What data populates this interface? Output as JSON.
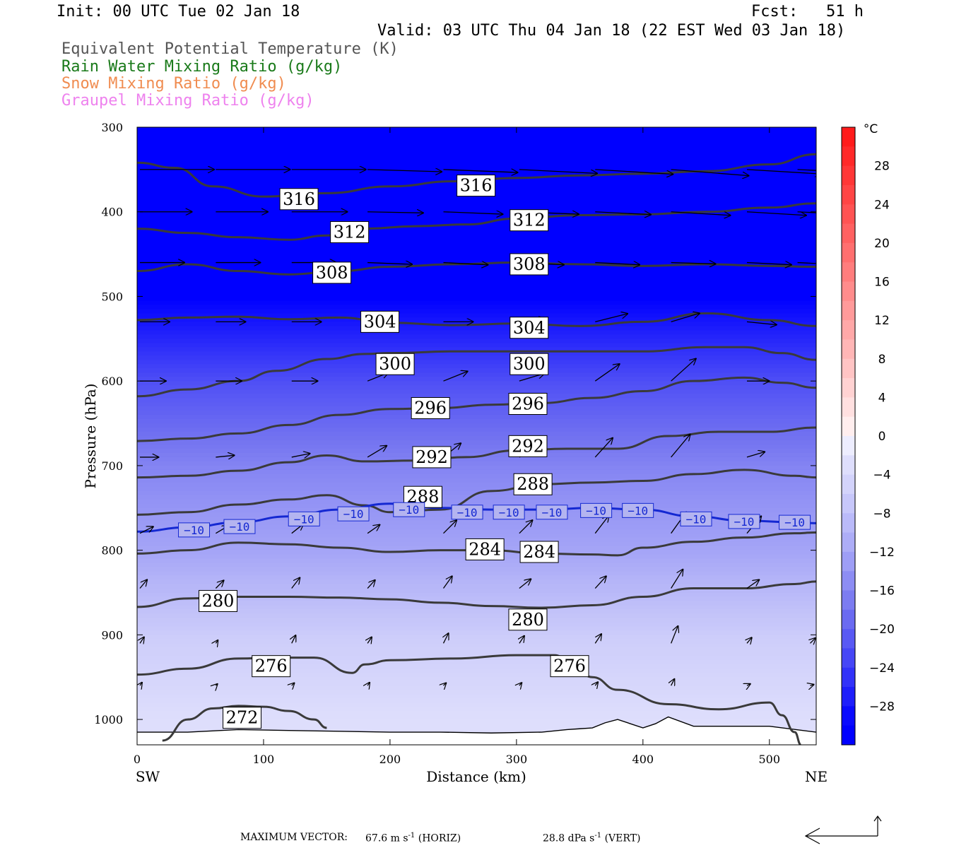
{
  "header": {
    "init": "Init: 00 UTC Tue 02 Jan 18",
    "fcst": "Fcst:   51 h",
    "valid": "Valid: 03 UTC Thu 04 Jan 18 (22 EST Wed 03 Jan 18)",
    "legend": [
      {
        "label": "Equivalent Potential Temperature (K)",
        "color": "#555555"
      },
      {
        "label": "Rain Water Mixing Ratio (g/kg)",
        "color": "#1a7a1a"
      },
      {
        "label": "Snow Mixing Ratio (g/kg)",
        "color": "#f08c50"
      },
      {
        "label": "Graupel Mixing Ratio (g/kg)",
        "color": "#ee82ee"
      }
    ]
  },
  "footer": {
    "max_vector_label": "MAXIMUM VECTOR:",
    "horiz": "67.6 m s",
    "horiz_exp": "-1",
    "horiz_unit": "(HORIZ)",
    "vert": "28.8 dPa s",
    "vert_exp": "-1",
    "vert_unit": "(VERT)"
  },
  "chart_data": {
    "type": "cross-section",
    "xlabel": "Distance (km)",
    "ylabel": "Pressure (hPa)",
    "xlim": [
      0,
      537
    ],
    "ylim": [
      1030,
      300
    ],
    "x_ticks": [
      0,
      100,
      200,
      300,
      400,
      500
    ],
    "y_ticks": [
      300,
      400,
      500,
      600,
      700,
      800,
      900,
      1000
    ],
    "endpoint_left": "SW",
    "endpoint_right": "NE",
    "colorbar": {
      "unit": "°C",
      "ticks": [
        28,
        24,
        20,
        16,
        12,
        8,
        4,
        0,
        -4,
        -8,
        -12,
        -16,
        -20,
        -24,
        -28
      ]
    },
    "theta_e_contours": [
      {
        "value": 316,
        "x": [
          0,
          30,
          60,
          100,
          150,
          200,
          250,
          300,
          350,
          400,
          450,
          500,
          537
        ],
        "p": [
          342,
          348,
          370,
          382,
          378,
          370,
          364,
          360,
          357,
          355,
          352,
          344,
          332
        ]
      },
      {
        "value": 312,
        "x": [
          0,
          40,
          80,
          120,
          150,
          180,
          220,
          260,
          300,
          350,
          400,
          450,
          500,
          537
        ],
        "p": [
          420,
          425,
          430,
          433,
          428,
          420,
          417,
          415,
          408,
          404,
          403,
          400,
          395,
          390
        ]
      },
      {
        "value": 308,
        "x": [
          0,
          40,
          80,
          120,
          160,
          200,
          250,
          300,
          350,
          400,
          450,
          500,
          537
        ],
        "p": [
          470,
          462,
          470,
          474,
          470,
          465,
          462,
          460,
          462,
          464,
          462,
          464,
          465
        ]
      },
      {
        "value": 304,
        "x": [
          0,
          40,
          80,
          120,
          160,
          200,
          250,
          300,
          350,
          400,
          450,
          500,
          537
        ],
        "p": [
          528,
          525,
          524,
          527,
          525,
          531,
          534,
          532,
          535,
          530,
          520,
          528,
          535
        ]
      },
      {
        "value": 300,
        "x": [
          0,
          40,
          80,
          110,
          150,
          180,
          200,
          250,
          300,
          350,
          400,
          450,
          480,
          510,
          537
        ],
        "p": [
          618,
          610,
          600,
          588,
          574,
          568,
          567,
          565,
          565,
          565,
          565,
          560,
          560,
          567,
          575
        ]
      },
      {
        "value": 296,
        "x": [
          0,
          40,
          80,
          120,
          160,
          200,
          240,
          280,
          320,
          360,
          400,
          440,
          480,
          510,
          537
        ],
        "p": [
          671,
          668,
          662,
          652,
          640,
          633,
          632,
          628,
          626,
          620,
          612,
          600,
          596,
          602,
          608
        ]
      },
      {
        "value": 292,
        "x": [
          0,
          40,
          80,
          120,
          150,
          180,
          220,
          260,
          300,
          340,
          380,
          420,
          460,
          500,
          537
        ],
        "p": [
          714,
          712,
          706,
          696,
          688,
          695,
          694,
          690,
          682,
          680,
          680,
          665,
          660,
          660,
          655
        ]
      },
      {
        "value": 288,
        "x": [
          0,
          40,
          80,
          120,
          150,
          180,
          200,
          240,
          280,
          320,
          360,
          400,
          440,
          480,
          520,
          537
        ],
        "p": [
          758,
          755,
          746,
          740,
          735,
          747,
          755,
          752,
          730,
          722,
          720,
          718,
          710,
          705,
          712,
          714
        ]
      },
      {
        "value": 284,
        "x": [
          0,
          40,
          80,
          120,
          160,
          200,
          240,
          280,
          320,
          360,
          380,
          400,
          440,
          480,
          520,
          537
        ],
        "p": [
          804,
          800,
          791,
          793,
          797,
          802,
          800,
          800,
          804,
          805,
          806,
          797,
          790,
          785,
          780,
          779
        ]
      },
      {
        "value": 280,
        "x": [
          0,
          40,
          80,
          120,
          160,
          200,
          240,
          280,
          320,
          360,
          400,
          440,
          480,
          520,
          537
        ],
        "p": [
          867,
          857,
          855,
          855,
          856,
          858,
          862,
          866,
          868,
          865,
          855,
          845,
          845,
          840,
          837
        ]
      },
      {
        "value": 276,
        "x": [
          0,
          40,
          80,
          110,
          140,
          170,
          180,
          200,
          250,
          300,
          330,
          340,
          360,
          380,
          420,
          460,
          500,
          510,
          520,
          525
        ],
        "p": [
          947,
          940,
          928,
          927,
          927,
          945,
          935,
          930,
          928,
          924,
          924,
          928,
          950,
          965,
          982,
          988,
          980,
          995,
          1015,
          1030
        ]
      },
      {
        "value": 272,
        "x": [
          20,
          40,
          60,
          80,
          100,
          120,
          140,
          150
        ],
        "p": [
          1025,
          1000,
          987,
          984,
          985,
          990,
          1000,
          1010
        ]
      }
    ],
    "temperature_contour": {
      "value": -10,
      "x": [
        0,
        40,
        80,
        120,
        160,
        200,
        240,
        280,
        320,
        360,
        400,
        440,
        480,
        520,
        537
      ],
      "p": [
        778,
        773,
        767,
        760,
        752,
        745,
        750,
        752,
        752,
        750,
        752,
        760,
        765,
        767,
        768
      ]
    },
    "contour_labels": [
      {
        "text": "316",
        "x": 128,
        "p": 385
      },
      {
        "text": "316",
        "x": 268,
        "p": 369
      },
      {
        "text": "312",
        "x": 168,
        "p": 424
      },
      {
        "text": "312",
        "x": 310,
        "p": 410
      },
      {
        "text": "308",
        "x": 154,
        "p": 472
      },
      {
        "text": "308",
        "x": 310,
        "p": 462
      },
      {
        "text": "304",
        "x": 192,
        "p": 530
      },
      {
        "text": "304",
        "x": 310,
        "p": 537
      },
      {
        "text": "300",
        "x": 204,
        "p": 580
      },
      {
        "text": "300",
        "x": 310,
        "p": 580
      },
      {
        "text": "296",
        "x": 232,
        "p": 632
      },
      {
        "text": "296",
        "x": 309,
        "p": 627
      },
      {
        "text": "292",
        "x": 233,
        "p": 690
      },
      {
        "text": "292",
        "x": 309,
        "p": 677
      },
      {
        "text": "288",
        "x": 226,
        "p": 737
      },
      {
        "text": "288",
        "x": 313,
        "p": 722
      },
      {
        "text": "284",
        "x": 275,
        "p": 799
      },
      {
        "text": "284",
        "x": 318,
        "p": 802
      },
      {
        "text": "280",
        "x": 64,
        "p": 860
      },
      {
        "text": "280",
        "x": 309,
        "p": 882
      },
      {
        "text": "276",
        "x": 106,
        "p": 937
      },
      {
        "text": "276",
        "x": 342,
        "p": 937
      },
      {
        "text": "272",
        "x": 83,
        "p": 998
      }
    ],
    "temp_labels": [
      {
        "text": "−10",
        "x": 45,
        "p": 776
      },
      {
        "text": "−10",
        "x": 81,
        "p": 772
      },
      {
        "text": "−10",
        "x": 132,
        "p": 763
      },
      {
        "text": "−10",
        "x": 171,
        "p": 757
      },
      {
        "text": "−10",
        "x": 215,
        "p": 752
      },
      {
        "text": "−10",
        "x": 261,
        "p": 755
      },
      {
        "text": "−10",
        "x": 294,
        "p": 755
      },
      {
        "text": "−10",
        "x": 328,
        "p": 755
      },
      {
        "text": "−10",
        "x": 363,
        "p": 753
      },
      {
        "text": "−10",
        "x": 396,
        "p": 753
      },
      {
        "text": "−10",
        "x": 442,
        "p": 763
      },
      {
        "text": "−10",
        "x": 480,
        "p": 766
      },
      {
        "text": "−10",
        "x": 520,
        "p": 767
      }
    ],
    "temperature_field_note_levels": [
      {
        "p": 300,
        "t": -30
      },
      {
        "p": 500,
        "t": -30
      },
      {
        "p": 600,
        "t": -22
      },
      {
        "p": 700,
        "t": -16
      },
      {
        "p": 800,
        "t": -12
      },
      {
        "p": 900,
        "t": -6
      },
      {
        "p": 1000,
        "t": -3
      }
    ],
    "terrain_p": [
      1015,
      1015,
      1012,
      1013,
      1014,
      1015,
      1015,
      1016,
      1015,
      1012,
      1011,
      1010,
      1004,
      1000,
      1010,
      1005,
      997,
      1008,
      1008,
      1015
    ],
    "terrain_x": [
      0,
      40,
      80,
      120,
      160,
      200,
      240,
      280,
      320,
      340,
      350,
      360,
      370,
      380,
      400,
      410,
      420,
      440,
      500,
      537
    ],
    "wind_rows": [
      {
        "p": 350,
        "x": [
          0,
          60,
          120,
          180,
          240,
          300,
          360,
          420,
          480,
          520
        ],
        "u": [
          1,
          1,
          1,
          1,
          1,
          1,
          1,
          1,
          1,
          1
        ],
        "v": [
          0,
          0,
          0,
          0.03,
          0.04,
          0.05,
          0.06,
          0.08,
          0.06,
          0.05
        ],
        "len": [
          1.0,
          1.0,
          1.0,
          1.0,
          1.0,
          1.05,
          1.05,
          1.05,
          1.0,
          1.0
        ]
      },
      {
        "p": 400,
        "x": [
          0,
          60,
          120,
          180,
          240,
          300,
          360,
          420,
          480,
          520
        ],
        "u": [
          1,
          1,
          1,
          1,
          1,
          1,
          1,
          1,
          1,
          1
        ],
        "v": [
          0,
          0,
          0,
          0.02,
          0.04,
          0.04,
          0.05,
          0.06,
          0.06,
          0.05
        ],
        "len": [
          0.7,
          0.7,
          0.75,
          0.75,
          0.8,
          0.8,
          0.75,
          0.8,
          0.8,
          0.75
        ]
      },
      {
        "p": 460,
        "x": [
          0,
          60,
          120,
          180,
          240,
          300,
          360,
          420,
          480,
          520
        ],
        "u": [
          1,
          1,
          1,
          1,
          1,
          1,
          1,
          1,
          1,
          1
        ],
        "v": [
          0,
          0,
          0,
          0.04,
          0.05,
          0.05,
          0.05,
          0.03,
          0.05,
          0.05
        ],
        "len": [
          0.6,
          0.6,
          0.6,
          0.6,
          0.6,
          0.6,
          0.6,
          0.6,
          0.6,
          0.6
        ]
      },
      {
        "p": 530,
        "x": [
          0,
          60,
          120,
          180,
          240,
          300,
          360,
          420,
          480
        ],
        "u": [
          1,
          1,
          1,
          1,
          1,
          1,
          1,
          1,
          1
        ],
        "v": [
          0,
          0,
          0,
          -0.05,
          0,
          -0.1,
          -0.25,
          -0.3,
          0.1
        ],
        "len": [
          0.4,
          0.4,
          0.4,
          0.4,
          0.4,
          0.35,
          0.45,
          0.4,
          0.4
        ]
      },
      {
        "p": 600,
        "x": [
          0,
          60,
          120,
          180,
          240,
          300,
          360,
          420,
          480
        ],
        "u": [
          1,
          1,
          1,
          1,
          1,
          1,
          1,
          1,
          1
        ],
        "v": [
          0,
          0,
          0,
          -0.4,
          -0.4,
          -0.3,
          -0.7,
          -0.9,
          0
        ],
        "len": [
          0.35,
          0.35,
          0.35,
          0.3,
          0.35,
          0.35,
          0.4,
          0.45,
          0.3
        ]
      },
      {
        "p": 690,
        "x": [
          0,
          60,
          120,
          180,
          240,
          300,
          360,
          420,
          480
        ],
        "u": [
          1,
          1,
          1,
          1,
          1,
          1,
          1,
          1,
          1
        ],
        "v": [
          0,
          -0.1,
          -0.2,
          -0.6,
          -0.8,
          -0.5,
          -1.1,
          -1.2,
          -0.3
        ],
        "len": [
          0.25,
          0.25,
          0.25,
          0.3,
          0.3,
          0.3,
          0.35,
          0.4,
          0.25
        ]
      },
      {
        "p": 780,
        "x": [
          0,
          60,
          120,
          180,
          240,
          300,
          360,
          420,
          480
        ],
        "u": [
          1,
          1,
          1,
          1,
          1,
          1,
          1,
          1,
          1
        ],
        "v": [
          -0.5,
          -0.6,
          -0.8,
          -0.7,
          -1.0,
          -1.0,
          -1.3,
          -1.4,
          -1.2
        ],
        "len": [
          0.2,
          0.2,
          0.2,
          0.2,
          0.25,
          0.25,
          0.3,
          0.35,
          0.3
        ]
      },
      {
        "p": 845,
        "x": [
          0,
          60,
          120,
          180,
          240,
          300,
          360,
          420,
          480
        ],
        "u": [
          1,
          1,
          1,
          1,
          1,
          1,
          1,
          1,
          1
        ],
        "v": [
          -1.2,
          -1.0,
          -1.3,
          -1.1,
          -1.4,
          -0.8,
          -1.1,
          -1.6,
          -0.7
        ],
        "len": [
          0.15,
          0.15,
          0.18,
          0.15,
          0.2,
          0.2,
          0.22,
          0.3,
          0.2
        ]
      },
      {
        "p": 910,
        "x": [
          0,
          60,
          120,
          180,
          240,
          300,
          360,
          420,
          480,
          530
        ],
        "u": [
          1,
          1,
          1,
          1,
          1,
          1,
          1,
          1,
          1,
          1
        ],
        "v": [
          -1.5,
          -1.5,
          -2,
          -1.5,
          -2,
          -1.5,
          -1.5,
          -2.5,
          -1.2,
          -1
        ],
        "len": [
          0.1,
          0.05,
          0.12,
          0.1,
          0.15,
          0.12,
          0.15,
          0.25,
          0.1,
          0.1
        ]
      },
      {
        "p": 960,
        "x": [
          0,
          60,
          120,
          180,
          240,
          300,
          360,
          420,
          480,
          530
        ],
        "u": [
          1,
          1,
          1,
          1,
          1,
          1,
          1,
          1,
          1,
          1
        ],
        "v": [
          -1.5,
          -1,
          -1,
          -1.5,
          -1,
          -1.2,
          -1.3,
          -2,
          -0.5,
          -0.3
        ],
        "len": [
          0.05,
          0.03,
          0.05,
          0.05,
          0.05,
          0.05,
          0.06,
          0.1,
          0.05,
          0.05
        ]
      }
    ]
  }
}
